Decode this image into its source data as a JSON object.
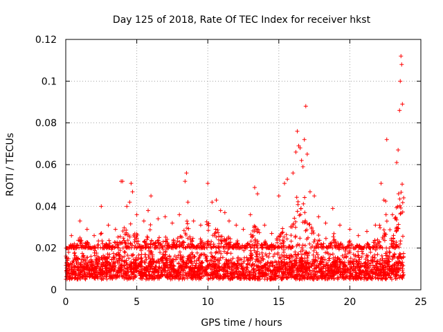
{
  "chart_data": {
    "type": "scatter",
    "title": "Day 125 of 2018, Rate Of TEC Index for receiver hkst",
    "xlabel": "GPS time / hours",
    "ylabel": "ROTI / TECUs",
    "xlim": [
      0,
      25
    ],
    "ylim": [
      0,
      0.12
    ],
    "x_ticks": [
      0,
      5,
      10,
      15,
      20,
      25
    ],
    "x_tick_labels": [
      "0",
      "5",
      "10",
      "15",
      "20",
      "25"
    ],
    "y_ticks": [
      0,
      0.02,
      0.04,
      0.06,
      0.08,
      0.1,
      0.12
    ],
    "y_tick_labels": [
      "0",
      "0.02",
      "0.04",
      "0.06",
      "0.08",
      "0.1",
      "0.12"
    ],
    "grid": true,
    "marker": "+",
    "marker_color": "#ff0000",
    "data_x_range": [
      0,
      23.8
    ],
    "baseline_band": [
      0.005,
      0.02
    ],
    "series": [
      {
        "name": "ROTI",
        "points": [
          [
            0.2,
            0.018
          ],
          [
            0.4,
            0.026
          ],
          [
            0.6,
            0.022
          ],
          [
            1.0,
            0.033
          ],
          [
            1.5,
            0.029
          ],
          [
            2.0,
            0.026
          ],
          [
            2.5,
            0.04
          ],
          [
            3.0,
            0.031
          ],
          [
            3.5,
            0.029
          ],
          [
            3.9,
            0.052
          ],
          [
            4.0,
            0.052
          ],
          [
            4.3,
            0.04
          ],
          [
            4.5,
            0.042
          ],
          [
            4.6,
            0.051
          ],
          [
            4.7,
            0.047
          ],
          [
            5.0,
            0.036
          ],
          [
            5.5,
            0.033
          ],
          [
            5.8,
            0.038
          ],
          [
            6.0,
            0.045
          ],
          [
            6.5,
            0.034
          ],
          [
            7.0,
            0.035
          ],
          [
            7.5,
            0.032
          ],
          [
            8.0,
            0.036
          ],
          [
            8.4,
            0.052
          ],
          [
            8.5,
            0.056
          ],
          [
            8.6,
            0.042
          ],
          [
            9.0,
            0.033
          ],
          [
            9.5,
            0.031
          ],
          [
            10.0,
            0.051
          ],
          [
            10.3,
            0.042
          ],
          [
            10.6,
            0.043
          ],
          [
            10.9,
            0.038
          ],
          [
            11.2,
            0.037
          ],
          [
            11.5,
            0.033
          ],
          [
            12.0,
            0.031
          ],
          [
            12.5,
            0.029
          ],
          [
            13.0,
            0.036
          ],
          [
            13.3,
            0.049
          ],
          [
            13.5,
            0.046
          ],
          [
            14.0,
            0.031
          ],
          [
            14.5,
            0.027
          ],
          [
            15.0,
            0.045
          ],
          [
            15.4,
            0.051
          ],
          [
            15.6,
            0.053
          ],
          [
            16.0,
            0.056
          ],
          [
            16.2,
            0.066
          ],
          [
            16.3,
            0.076
          ],
          [
            16.4,
            0.069
          ],
          [
            16.5,
            0.068
          ],
          [
            16.6,
            0.062
          ],
          [
            16.7,
            0.059
          ],
          [
            16.8,
            0.072
          ],
          [
            16.9,
            0.088
          ],
          [
            17.0,
            0.065
          ],
          [
            17.2,
            0.047
          ],
          [
            17.5,
            0.045
          ],
          [
            17.8,
            0.035
          ],
          [
            18.3,
            0.032
          ],
          [
            18.8,
            0.039
          ],
          [
            19.3,
            0.031
          ],
          [
            20.0,
            0.029
          ],
          [
            20.6,
            0.026
          ],
          [
            21.2,
            0.028
          ],
          [
            21.8,
            0.031
          ],
          [
            22.2,
            0.051
          ],
          [
            22.4,
            0.043
          ],
          [
            22.6,
            0.072
          ],
          [
            23.0,
            0.036
          ],
          [
            23.3,
            0.061
          ],
          [
            23.4,
            0.067
          ],
          [
            23.5,
            0.086
          ],
          [
            23.55,
            0.1
          ],
          [
            23.6,
            0.112
          ],
          [
            23.65,
            0.108
          ],
          [
            23.7,
            0.089
          ]
        ]
      }
    ]
  }
}
